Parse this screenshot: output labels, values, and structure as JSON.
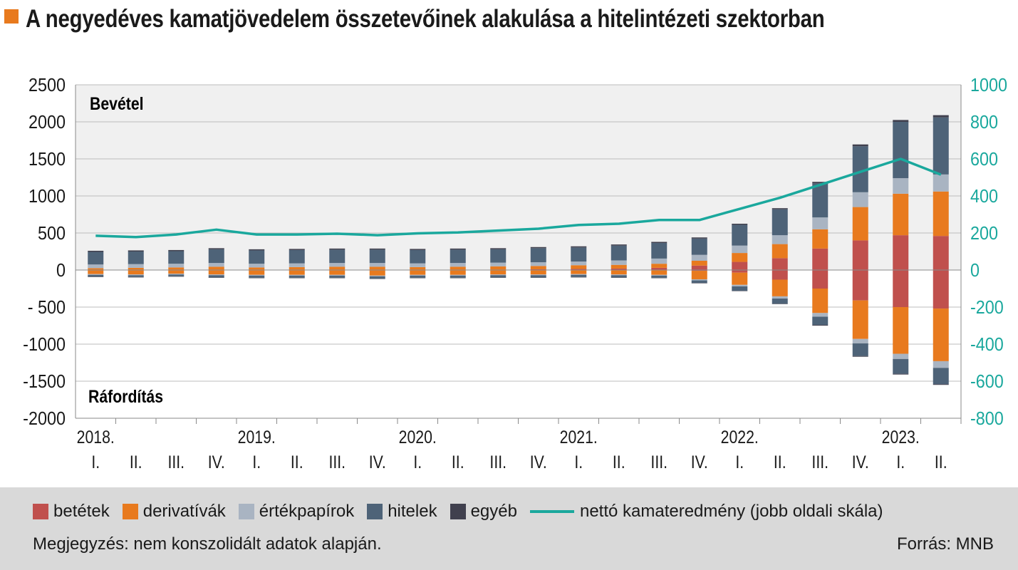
{
  "title": "A negyedéves kamatjövedelem összetevőinek alakulása a hitelintézeti szektorban",
  "colors": {
    "accent": "#e87a1e",
    "betetek": "#c0504d",
    "derivativak": "#e87a1e",
    "ertekpapirok": "#a9b4c2",
    "hitelek": "#4e6378",
    "egyeb": "#40404e",
    "line": "#1aa89d",
    "plot_bg": "#f0f0f0",
    "footer_bg": "#d9d9d9"
  },
  "chart_data": {
    "type": "bar",
    "stacked": true,
    "annotations": {
      "upper": "Bevétel",
      "lower": "Ráfordítás"
    },
    "year_labels": [
      "2018.",
      "2019.",
      "2020.",
      "2021.",
      "2022.",
      "2023."
    ],
    "quarter_labels": [
      "I.",
      "II.",
      "III.",
      "IV.",
      "I.",
      "II.",
      "III.",
      "IV.",
      "I.",
      "II.",
      "III.",
      "IV.",
      "I.",
      "II.",
      "III.",
      "IV.",
      "I.",
      "II.",
      "III.",
      "IV.",
      "I.",
      "II."
    ],
    "y_left": {
      "min": -2000,
      "max": 2500,
      "ticks": [
        2500,
        2000,
        1500,
        1000,
        500,
        0,
        -500,
        -1000,
        -1500,
        -2000
      ],
      "tick_labels": [
        "2500",
        "2000",
        "1500",
        "1000",
        "500",
        "0",
        "- 500",
        "-1000",
        "-1500",
        "-2000"
      ]
    },
    "y_right": {
      "min": -800,
      "max": 1000,
      "ticks": [
        1000,
        800,
        600,
        400,
        200,
        0,
        -200,
        -400,
        -600,
        -800
      ],
      "tick_labels": [
        "1000",
        "800",
        "600",
        "400",
        "200",
        "0",
        "-200",
        "-400",
        "-600",
        "-800"
      ]
    },
    "grid": true,
    "series": [
      {
        "name": "betétek",
        "color": "#c0504d",
        "income": [
          5,
          5,
          5,
          5,
          5,
          5,
          5,
          5,
          5,
          5,
          5,
          10,
          15,
          20,
          30,
          60,
          110,
          160,
          290,
          400,
          470,
          460
        ],
        "expense": [
          -5,
          -5,
          -5,
          -5,
          -5,
          -5,
          -5,
          -5,
          -5,
          -5,
          -5,
          -5,
          -5,
          -5,
          -5,
          -10,
          -35,
          -130,
          -250,
          -410,
          -500,
          -520
        ]
      },
      {
        "name": "derivatívák",
        "color": "#e87a1e",
        "income": [
          20,
          25,
          30,
          40,
          30,
          35,
          40,
          40,
          35,
          40,
          45,
          45,
          50,
          50,
          55,
          65,
          120,
          190,
          260,
          450,
          560,
          600
        ],
        "expense": [
          -50,
          -55,
          -45,
          -55,
          -60,
          -60,
          -60,
          -70,
          -60,
          -60,
          -55,
          -55,
          -50,
          -55,
          -60,
          -115,
          -165,
          -225,
          -330,
          -520,
          -630,
          -710
        ]
      },
      {
        "name": "értékpapírok",
        "color": "#a9b4c2",
        "income": [
          50,
          50,
          50,
          50,
          50,
          50,
          50,
          50,
          50,
          50,
          50,
          50,
          50,
          60,
          70,
          80,
          100,
          120,
          160,
          200,
          210,
          230
        ],
        "expense": [
          -10,
          -10,
          -10,
          -10,
          -10,
          -10,
          -10,
          -10,
          -10,
          -10,
          -10,
          -10,
          -10,
          -10,
          -10,
          -15,
          -20,
          -30,
          -50,
          -60,
          -70,
          -90
        ]
      },
      {
        "name": "hitelek",
        "color": "#4e6378",
        "income": [
          170,
          170,
          170,
          185,
          180,
          180,
          180,
          180,
          180,
          180,
          180,
          190,
          190,
          200,
          210,
          220,
          280,
          350,
          460,
          620,
          760,
          770
        ],
        "expense": [
          -25,
          -25,
          -25,
          -30,
          -30,
          -30,
          -30,
          -30,
          -30,
          -30,
          -30,
          -30,
          -30,
          -30,
          -30,
          -35,
          -60,
          -70,
          -110,
          -170,
          -200,
          -220
        ]
      },
      {
        "name": "egyéb",
        "color": "#40404e",
        "income": [
          15,
          15,
          15,
          15,
          15,
          15,
          15,
          15,
          15,
          15,
          15,
          15,
          15,
          15,
          15,
          15,
          15,
          15,
          20,
          25,
          25,
          30
        ],
        "expense": [
          -5,
          -5,
          -5,
          -5,
          -5,
          -5,
          -5,
          -5,
          -5,
          -5,
          -5,
          -5,
          -5,
          -5,
          -5,
          -5,
          -5,
          -5,
          -10,
          -10,
          -10,
          -10
        ]
      },
      {
        "name": "nettó kamateredmény (jobb oldali skála)",
        "type": "line",
        "axis": "right",
        "color": "#1aa89d",
        "values": [
          185,
          178,
          192,
          218,
          192,
          192,
          196,
          188,
          198,
          203,
          213,
          223,
          243,
          250,
          270,
          270,
          330,
          390,
          460,
          530,
          600,
          515
        ]
      }
    ]
  },
  "legend": [
    {
      "label": "betétek",
      "color": "#c0504d",
      "kind": "box"
    },
    {
      "label": "derivatívák",
      "color": "#e87a1e",
      "kind": "box"
    },
    {
      "label": "értékpapírok",
      "color": "#a9b4c2",
      "kind": "box"
    },
    {
      "label": "hitelek",
      "color": "#4e6378",
      "kind": "box"
    },
    {
      "label": "egyéb",
      "color": "#40404e",
      "kind": "box"
    },
    {
      "label": "nettó kamateredmény (jobb oldali skála)",
      "color": "#1aa89d",
      "kind": "line"
    }
  ],
  "footer": {
    "note": "Megjegyzés: nem konszolidált adatok alapján.",
    "source": "Forrás: MNB"
  }
}
